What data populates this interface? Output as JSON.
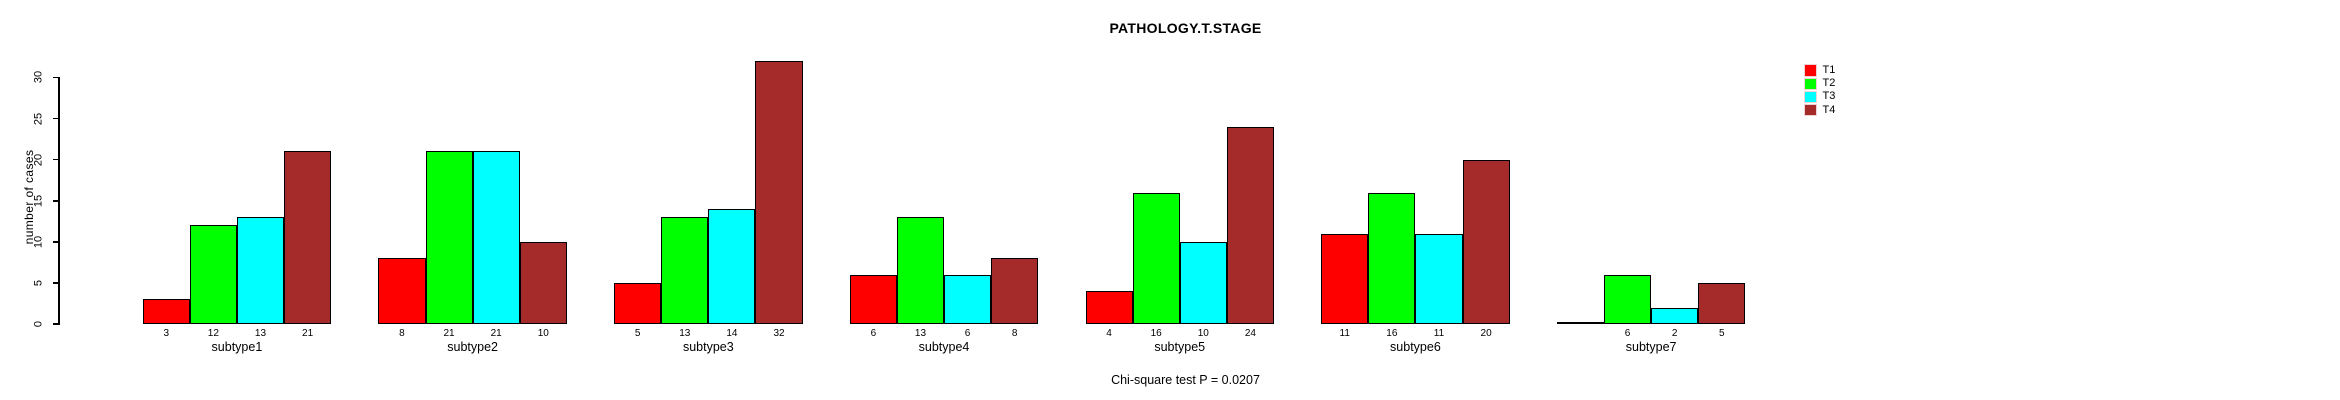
{
  "chart_data": {
    "type": "bar",
    "title": "PATHOLOGY.T.STAGE",
    "ylabel": "number of cases",
    "xlabel": "",
    "caption": "Chi-square test P = 0.0207",
    "categories": [
      "subtype1",
      "subtype2",
      "subtype3",
      "subtype4",
      "subtype5",
      "subtype6",
      "subtype7"
    ],
    "series": [
      {
        "name": "T1",
        "color": "#FF0000",
        "values": [
          3,
          8,
          5,
          6,
          4,
          11,
          0
        ]
      },
      {
        "name": "T2",
        "color": "#00FF00",
        "values": [
          12,
          21,
          13,
          13,
          16,
          16,
          6
        ]
      },
      {
        "name": "T3",
        "color": "#00FFFF",
        "values": [
          13,
          21,
          14,
          6,
          10,
          11,
          2
        ]
      },
      {
        "name": "T4",
        "color": "#A52A2A",
        "values": [
          21,
          10,
          32,
          8,
          24,
          20,
          5
        ]
      }
    ],
    "bar_value_labels_shown": true,
    "zero_value_labels_hidden": true,
    "yticks": [
      0,
      5,
      10,
      15,
      20,
      25,
      30
    ],
    "ylim": [
      0,
      30
    ],
    "grid": false,
    "legend_position": "top-right",
    "axis_color": "#000000",
    "background_color": "#FFFFFF"
  }
}
